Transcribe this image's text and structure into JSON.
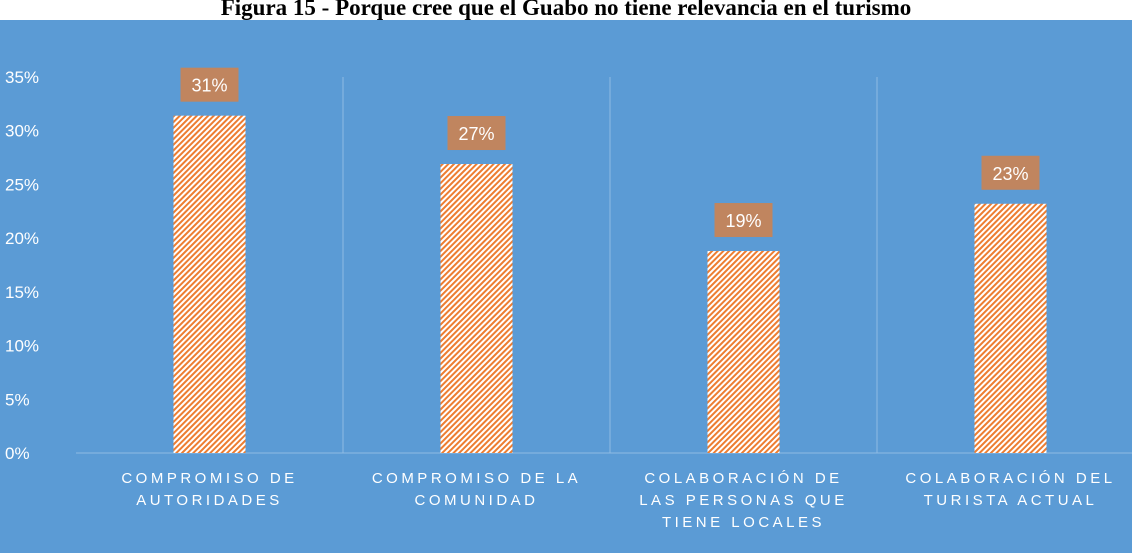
{
  "chart_data": {
    "type": "bar",
    "title": "Figura 15 - Porque cree que el Guabo no tiene relevancia en el turismo",
    "categories": [
      "COMPROMISO DE AUTORIDADES",
      "COMPROMISO DE LA COMUNIDAD",
      "COLABORACIÓN DE LAS PERSONAS QUE TIENE LOCALES",
      "COLABORACIÓN DEL TURISTA ACTUAL"
    ],
    "values": [
      31.4,
      26.9,
      18.8,
      23.2
    ],
    "value_labels": [
      "31%",
      "27%",
      "19%",
      "23%"
    ],
    "color": "#ed7d31",
    "ylim": [
      0,
      35
    ],
    "yticks": [
      {
        "value": 0,
        "label": "0%"
      },
      {
        "value": 5,
        "label": "5%"
      },
      {
        "value": 10,
        "label": "10%"
      },
      {
        "value": 15,
        "label": "15%"
      },
      {
        "value": 20,
        "label": "20%"
      },
      {
        "value": 25,
        "label": "25%"
      },
      {
        "value": 30,
        "label": "30%"
      },
      {
        "value": 35,
        "label": "35%"
      }
    ],
    "grid": true
  }
}
